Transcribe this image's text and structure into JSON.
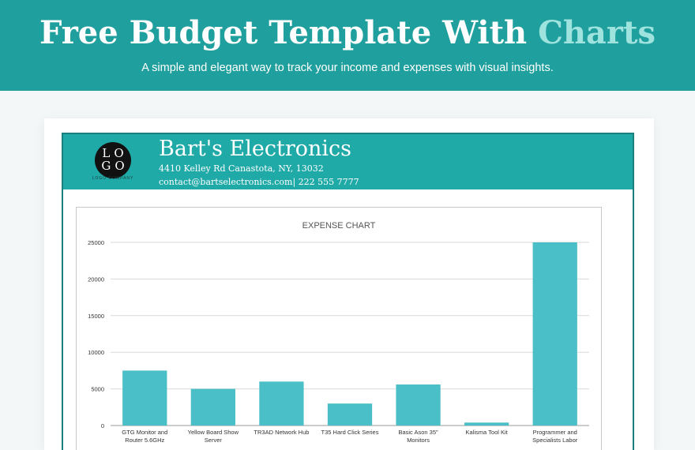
{
  "banner": {
    "title_main": "Free Budget Template With",
    "title_accent": "Charts",
    "subtitle": "A simple and elegant way to track your income and expenses with visual insights."
  },
  "sheet": {
    "logo_text_top": "LO",
    "logo_text_bottom": "GO",
    "logo_caption": "LOGO COMPANY",
    "company_name": "Bart's Electronics",
    "address": "4410 Kelley Rd Canastota, NY, 13032",
    "contact": "contact@bartselectronics.com| 222 555 7777"
  },
  "colors": {
    "banner": "#1f9f9d",
    "accent_text": "#9fe3df",
    "header": "#1fa9a7",
    "bar": "#4bbfc7",
    "grid": "#d9d9d9"
  },
  "chart_data": {
    "type": "bar",
    "title": "EXPENSE CHART",
    "categories": [
      [
        "GTG Monitor and",
        "Router 5.6GHz"
      ],
      [
        "Yellow Board Show",
        "Server"
      ],
      [
        "TR3AD Network Hub"
      ],
      [
        "T35 Hard Click Series"
      ],
      [
        "Basic Ason 35\"",
        "Monitors"
      ],
      [
        "Kalisma Tool Kit"
      ],
      [
        "Programmer and",
        "Specialists Labor"
      ]
    ],
    "values": [
      7500,
      5000,
      6000,
      3000,
      5600,
      400,
      25000
    ],
    "ylim": [
      0,
      25000
    ],
    "yticks": [
      0,
      5000,
      10000,
      15000,
      20000,
      25000
    ],
    "grid": true,
    "legend": "none"
  }
}
